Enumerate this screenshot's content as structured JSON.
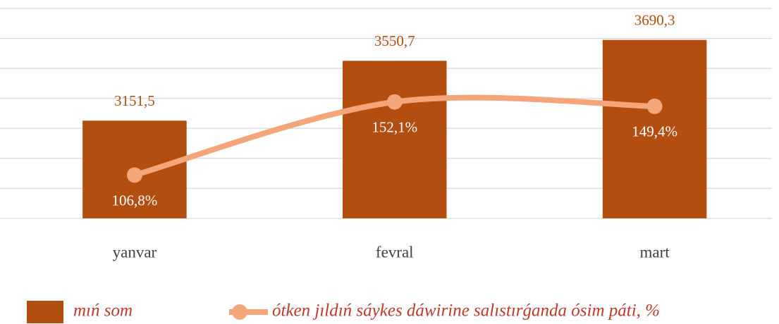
{
  "chart_data": {
    "type": "bar-line",
    "categories": [
      "yanvar",
      "fevral",
      "mart"
    ],
    "series": [
      {
        "name": "mıń som",
        "type": "bar",
        "color": "#b14e10",
        "values": [
          3151.5,
          3550.7,
          3690.3
        ],
        "value_labels": [
          "3151,5",
          "3550,7",
          "3690,3"
        ]
      },
      {
        "name": "ótken jıldıń sáykes dáwirine salıstırǵanda ósim páti, %",
        "type": "line",
        "axis": "y2",
        "color": "#f4a57a",
        "values": [
          106.8,
          152.1,
          149.4
        ],
        "value_labels": [
          "106,8%",
          "152,1%",
          "149,4%"
        ]
      }
    ],
    "ylim": [
      2500,
      3900
    ],
    "yticks": [
      2500,
      2700,
      2900,
      3100,
      3300,
      3500,
      3700,
      3900
    ],
    "y2lim": [
      80,
      210
    ],
    "grid": true,
    "legend": "bottom"
  }
}
